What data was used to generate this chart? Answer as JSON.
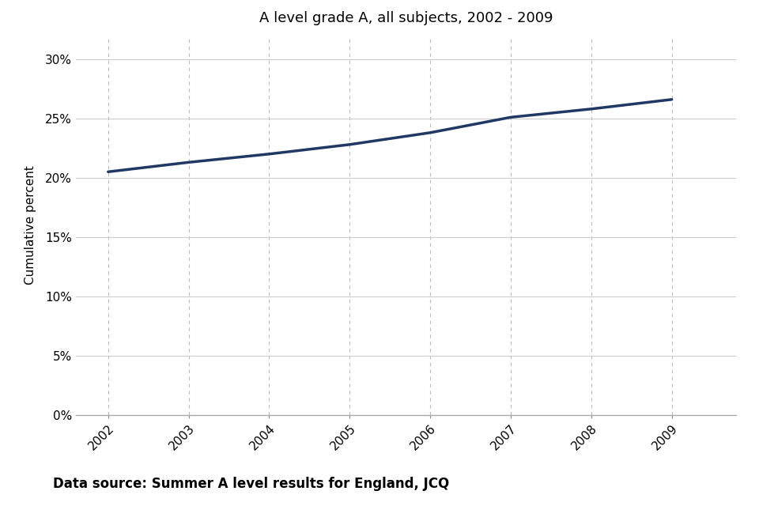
{
  "title": "A level grade A, all subjects, 2002 - 2009",
  "xlabel": "",
  "ylabel": "Cumulative percent",
  "footnote": "Data source: Summer A level results for England, JCQ",
  "x": [
    2002,
    2003,
    2004,
    2005,
    2006,
    2007,
    2008,
    2009
  ],
  "y": [
    0.205,
    0.213,
    0.22,
    0.228,
    0.238,
    0.251,
    0.258,
    0.266
  ],
  "line_color": "#1F3864",
  "line_width": 2.5,
  "ylim": [
    0,
    0.32
  ],
  "yticks": [
    0.0,
    0.05,
    0.1,
    0.15,
    0.2,
    0.25,
    0.3
  ],
  "xticks": [
    2002,
    2003,
    2004,
    2005,
    2006,
    2007,
    2008,
    2009
  ],
  "grid_color_h": "#cccccc",
  "grid_color_v": "#bbbbbb",
  "background_color": "#ffffff",
  "title_fontsize": 13,
  "axis_label_fontsize": 11,
  "tick_fontsize": 11,
  "footnote_fontsize": 12,
  "xlim_left": 2001.6,
  "xlim_right": 2009.8
}
